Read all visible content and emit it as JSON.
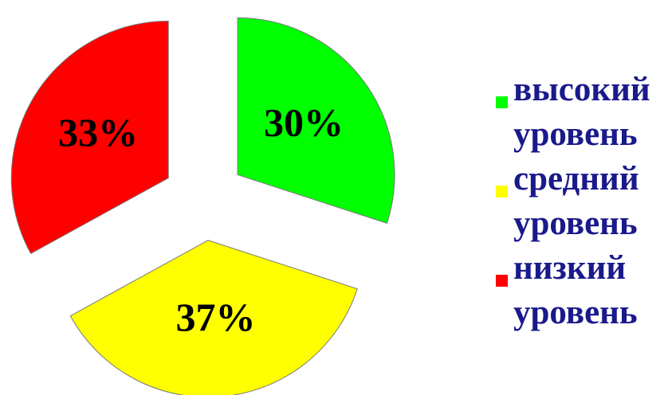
{
  "chart_data": {
    "type": "pie",
    "exploded": true,
    "slices": [
      {
        "label": "высокий уровень",
        "lines": [
          "высокий",
          "уровень"
        ],
        "value": 30,
        "value_label": "30%",
        "color": "#00ff00"
      },
      {
        "label": "средний уровень",
        "lines": [
          "средний",
          "уровень"
        ],
        "value": 37,
        "value_label": "37%",
        "color": "#ffff00"
      },
      {
        "label": "низкий уровень",
        "lines": [
          "низкий",
          "уровень"
        ],
        "value": 33,
        "value_label": "33%",
        "color": "#ff0000"
      }
    ],
    "legend_position": "right",
    "label_color": "#000000",
    "legend_text_color": "#1a1a8c"
  }
}
